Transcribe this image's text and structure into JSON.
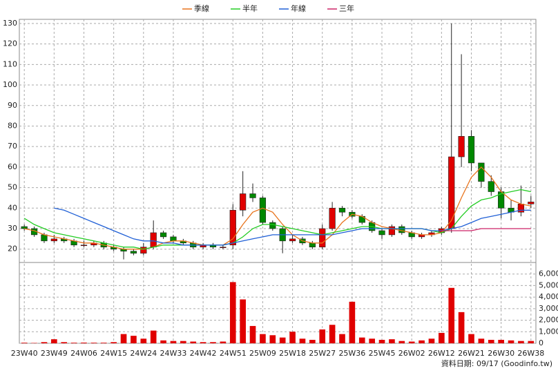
{
  "chart_data": [
    {
      "type": "candlestick",
      "up_color": "#e00000",
      "down_color": "#008800",
      "open": [
        31,
        30,
        27,
        24,
        25,
        24,
        22,
        22,
        23,
        21,
        20,
        19,
        18,
        21,
        28,
        26,
        24,
        23,
        21,
        22,
        21,
        22,
        39,
        47,
        45,
        33,
        30,
        24,
        25,
        23,
        21,
        30,
        40,
        38,
        36,
        33,
        29,
        27,
        31,
        28,
        26,
        27,
        28,
        30,
        65,
        75,
        62,
        53,
        48,
        40,
        38,
        42
      ],
      "high": [
        32,
        31,
        28,
        27,
        26,
        25,
        24,
        24,
        24,
        22,
        21,
        20,
        23,
        34,
        29,
        27,
        25,
        24,
        23,
        23,
        22,
        42,
        58,
        52,
        46,
        34,
        31,
        27,
        26,
        24,
        32,
        43,
        41,
        39,
        37,
        34,
        30,
        32,
        32,
        29,
        28,
        29,
        31,
        130,
        115,
        78,
        62,
        56,
        50,
        44,
        51,
        46
      ],
      "low": [
        29,
        26,
        23,
        23,
        23,
        21,
        21,
        21,
        20,
        19,
        15,
        17,
        17,
        20,
        25,
        23,
        22,
        20,
        20,
        20,
        20,
        20,
        36,
        43,
        32,
        29,
        18,
        23,
        22,
        20,
        20,
        29,
        36,
        35,
        32,
        28,
        25,
        26,
        27,
        25,
        25,
        26,
        27,
        28,
        60,
        58,
        50,
        46,
        35,
        34,
        36,
        40
      ],
      "close": [
        30,
        27,
        24,
        25,
        24,
        22,
        22,
        23,
        21,
        20,
        19,
        18,
        21,
        28,
        26,
        24,
        23,
        21,
        22,
        21,
        21,
        39,
        47,
        45,
        33,
        30,
        24,
        25,
        23,
        21,
        30,
        40,
        38,
        36,
        33,
        29,
        27,
        31,
        28,
        26,
        27,
        28,
        30,
        65,
        75,
        62,
        53,
        48,
        40,
        38,
        42,
        43
      ],
      "series": [
        {
          "name": "季線",
          "color": "#e8731c",
          "values": [
            30,
            29,
            27,
            26,
            25,
            24,
            23,
            23,
            22,
            21,
            20,
            20,
            20,
            21,
            23,
            24,
            24,
            23,
            22,
            22,
            22,
            25,
            32,
            38,
            40,
            38,
            32,
            27,
            24,
            23,
            23,
            27,
            33,
            37,
            36,
            33,
            31,
            30,
            29,
            28,
            27,
            27,
            28,
            34,
            45,
            55,
            60,
            55,
            48,
            44,
            42,
            41
          ]
        },
        {
          "name": "半年",
          "color": "#22cc22",
          "values": [
            35,
            32,
            30,
            28,
            27,
            26,
            25,
            24,
            23,
            22,
            21,
            21,
            20,
            21,
            22,
            22,
            22,
            22,
            22,
            22,
            22,
            23,
            26,
            30,
            32,
            32,
            31,
            30,
            29,
            28,
            27,
            28,
            29,
            30,
            31,
            31,
            30,
            30,
            30,
            30,
            30,
            29,
            28,
            30,
            36,
            41,
            44,
            45,
            47,
            48,
            49,
            48
          ]
        },
        {
          "name": "年線",
          "color": "#1f5fd6",
          "values": [
            null,
            null,
            null,
            40,
            39,
            37,
            35,
            33,
            31,
            29,
            27,
            25,
            24,
            24,
            23,
            23,
            22,
            22,
            22,
            22,
            22,
            23,
            24,
            25,
            26,
            27,
            27,
            27,
            27,
            27,
            27,
            27,
            28,
            29,
            30,
            30,
            30,
            30,
            30,
            30,
            30,
            29,
            29,
            30,
            31,
            33,
            35,
            36,
            37,
            38,
            39,
            39
          ]
        },
        {
          "name": "三年",
          "color": "#cc2266",
          "values": [
            null,
            null,
            null,
            null,
            null,
            null,
            null,
            null,
            null,
            null,
            null,
            null,
            null,
            null,
            null,
            null,
            null,
            null,
            null,
            null,
            null,
            null,
            null,
            null,
            null,
            null,
            null,
            null,
            null,
            null,
            null,
            null,
            null,
            null,
            null,
            null,
            null,
            null,
            null,
            null,
            null,
            null,
            29,
            29,
            29,
            29,
            30,
            30,
            30,
            30,
            30,
            30
          ]
        }
      ],
      "ylim": [
        13.5,
        132
      ],
      "yticks": [
        20,
        30,
        40,
        50,
        60,
        70,
        80,
        90,
        100,
        110,
        120,
        130
      ],
      "grid": true
    },
    {
      "type": "bar",
      "color": "#e00000",
      "categories": [
        "23W40",
        null,
        null,
        "23W49",
        null,
        null,
        "24W06",
        null,
        null,
        "24W15",
        null,
        null,
        "24W24",
        null,
        null,
        "24W33",
        null,
        null,
        "24W42",
        null,
        null,
        "24W51",
        null,
        null,
        "25W09",
        null,
        null,
        "25W18",
        null,
        null,
        "25W27",
        null,
        null,
        "25W36",
        null,
        null,
        "25W45",
        null,
        null,
        "26W02",
        null,
        null,
        "26W12",
        null,
        null,
        "26W21",
        null,
        null,
        "26W30",
        null,
        null,
        "26W38"
      ],
      "values": [
        50,
        30,
        100,
        350,
        100,
        50,
        60,
        50,
        50,
        100,
        800,
        650,
        400,
        1100,
        250,
        200,
        200,
        150,
        100,
        100,
        150,
        5300,
        3800,
        1500,
        800,
        700,
        500,
        1000,
        400,
        300,
        1200,
        1600,
        800,
        3600,
        500,
        400,
        300,
        350,
        200,
        150,
        250,
        400,
        900,
        4800,
        2700,
        800,
        400,
        300,
        300,
        250,
        200,
        200
      ],
      "ylim": [
        0,
        7000
      ],
      "yticks": [
        0,
        {
          "value": 1000,
          "label": "1,000"
        },
        {
          "value": 2000,
          "label": "2,000"
        },
        {
          "value": 3000,
          "label": "3,000"
        },
        {
          "value": 4000,
          "label": "4,000"
        },
        {
          "value": 5000,
          "label": "5,000"
        },
        {
          "value": 6000,
          "label": "6,000"
        }
      ],
      "footer": "資料日期: 09/17  (Goodinfo.tw)"
    }
  ]
}
